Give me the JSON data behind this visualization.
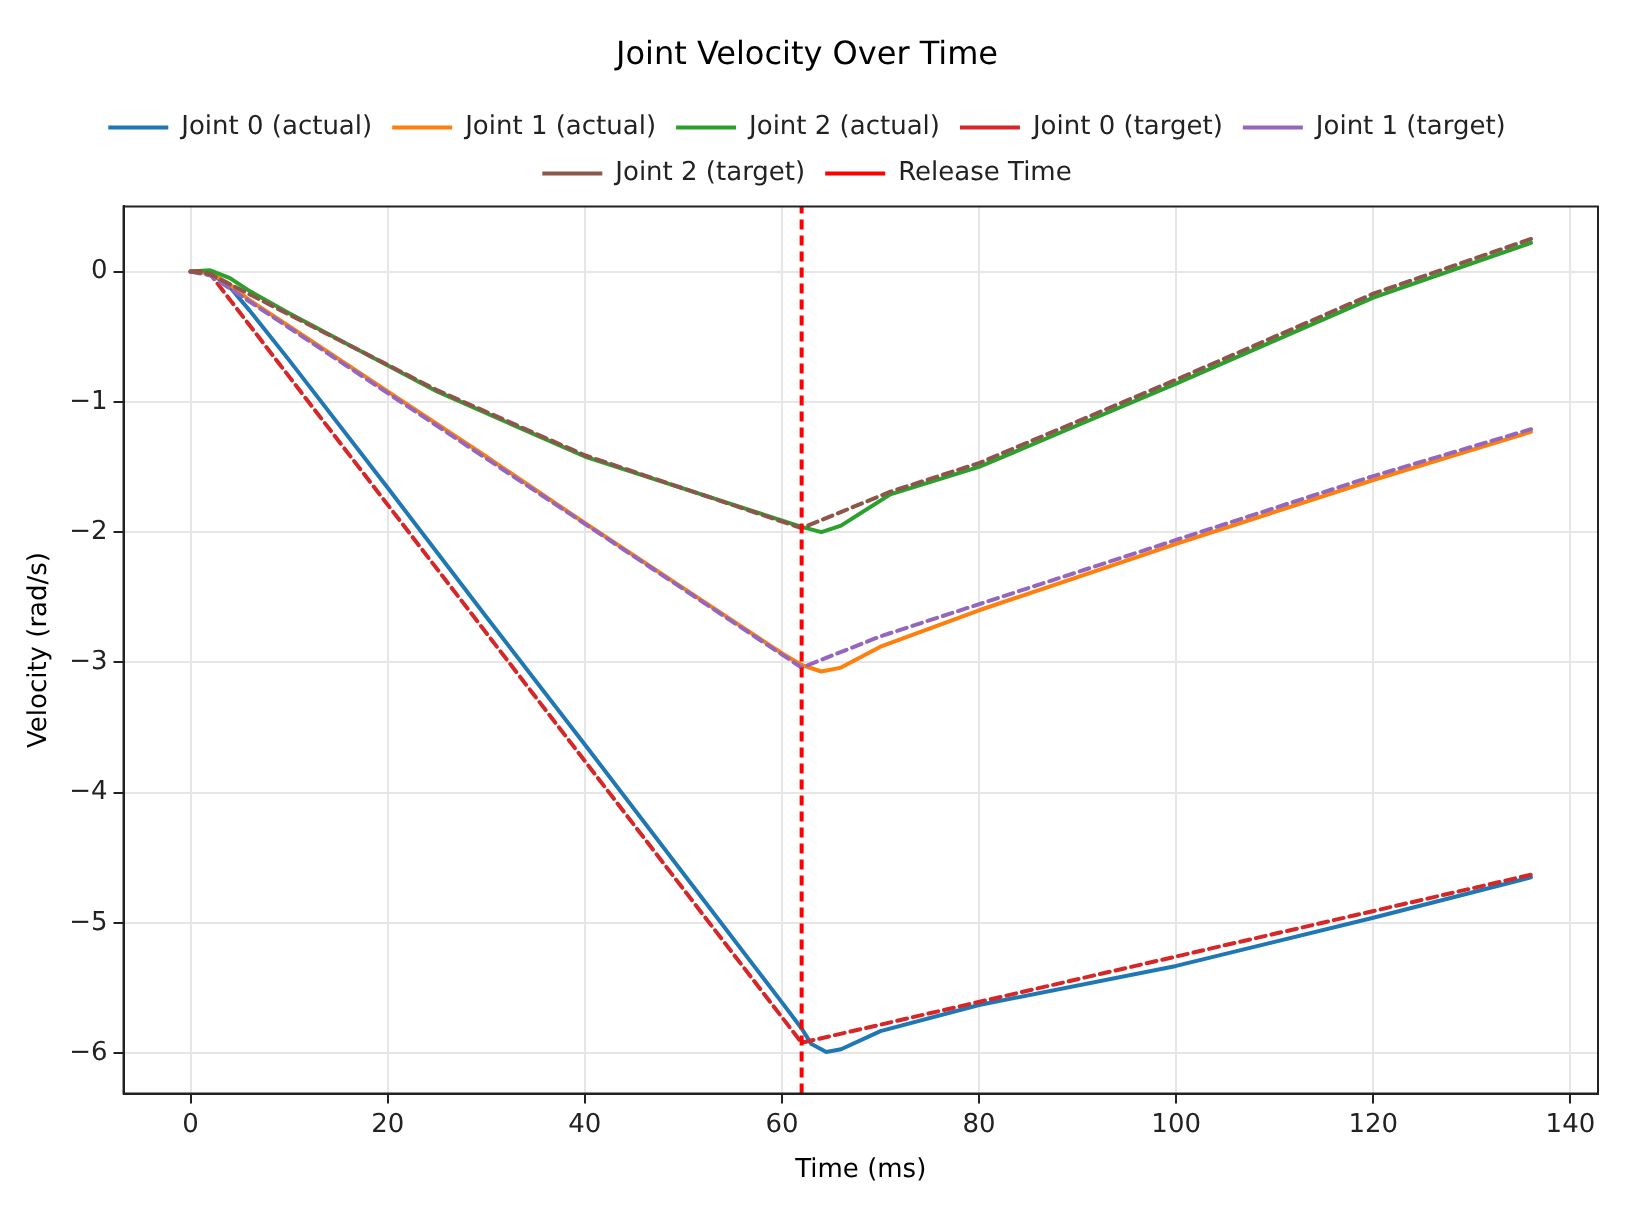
{
  "chart_data": {
    "type": "line",
    "title": "Joint Velocity Over Time",
    "xlabel": "Time (ms)",
    "ylabel": "Velocity (rad/s)",
    "series": [
      {
        "name": "Joint 0 (actual)",
        "color": "#1f77b4",
        "line_style": "solid",
        "x": [
          0,
          2,
          4,
          6,
          10,
          20,
          30,
          40,
          50,
          60,
          62,
          63,
          64.5,
          66,
          70,
          80,
          100,
          120,
          136
        ],
        "values": [
          0,
          -0.01,
          -0.12,
          -0.3,
          -0.68,
          -1.66,
          -2.65,
          -3.63,
          -4.62,
          -5.61,
          -5.81,
          -5.93,
          -5.99,
          -5.97,
          -5.83,
          -5.63,
          -5.33,
          -4.96,
          -4.65
        ]
      },
      {
        "name": "Joint 1 (actual)",
        "color": "#ff7f0e",
        "line_style": "solid",
        "x": [
          0,
          2,
          4,
          6,
          10,
          20,
          30,
          40,
          50,
          60,
          62,
          64,
          66,
          70,
          80,
          100,
          120,
          136
        ],
        "values": [
          0,
          -0.01,
          -0.1,
          -0.22,
          -0.42,
          -0.92,
          -1.42,
          -1.93,
          -2.43,
          -2.93,
          -3.02,
          -3.07,
          -3.04,
          -2.88,
          -2.6,
          -2.09,
          -1.6,
          -1.23
        ]
      },
      {
        "name": "Joint 2 (actual)",
        "color": "#2ca02c",
        "line_style": "solid",
        "x": [
          0,
          2,
          4,
          6,
          10,
          25,
          40,
          62,
          64,
          66,
          71,
          80,
          90,
          100,
          110,
          120,
          136
        ],
        "values": [
          0,
          0.01,
          -0.05,
          -0.15,
          -0.32,
          -0.92,
          -1.42,
          -1.96,
          -2.0,
          -1.95,
          -1.71,
          -1.5,
          -1.18,
          -0.86,
          -0.53,
          -0.2,
          0.22
        ]
      },
      {
        "name": "Joint 0 (target)",
        "color": "#d62728",
        "line_style": "dashed",
        "x": [
          0,
          1,
          2,
          62,
          136
        ],
        "values": [
          0,
          0,
          -0.02,
          -5.92,
          -4.63
        ]
      },
      {
        "name": "Joint 1 (target)",
        "color": "#9467bd",
        "line_style": "dashed",
        "x": [
          0,
          2,
          62,
          70,
          100,
          120,
          136
        ],
        "values": [
          0,
          -0.03,
          -3.04,
          -2.8,
          -2.06,
          -1.57,
          -1.21
        ]
      },
      {
        "name": "Joint 2 (target)",
        "color": "#8c564b",
        "line_style": "dashed",
        "x": [
          0,
          2,
          10,
          25,
          40,
          62,
          71,
          80,
          90,
          100,
          110,
          120,
          136
        ],
        "values": [
          0,
          -0.02,
          -0.33,
          -0.91,
          -1.41,
          -1.97,
          -1.69,
          -1.47,
          -1.15,
          -0.83,
          -0.5,
          -0.17,
          0.25
        ]
      }
    ],
    "ref_lines": [
      {
        "axis": "x",
        "value": 62,
        "label": "Release Time",
        "color": "#ff0000",
        "line_style": "dashed"
      }
    ],
    "xlim": [
      -6.8,
      142.8
    ],
    "xticks": [
      0,
      20,
      40,
      60,
      80,
      100,
      120,
      140
    ],
    "ylim": [
      -6.31,
      0.5
    ],
    "yticks": [
      -6,
      -5,
      -4,
      -3,
      -2,
      -1,
      0
    ],
    "grid": true,
    "legend": "top",
    "marker": "none"
  }
}
